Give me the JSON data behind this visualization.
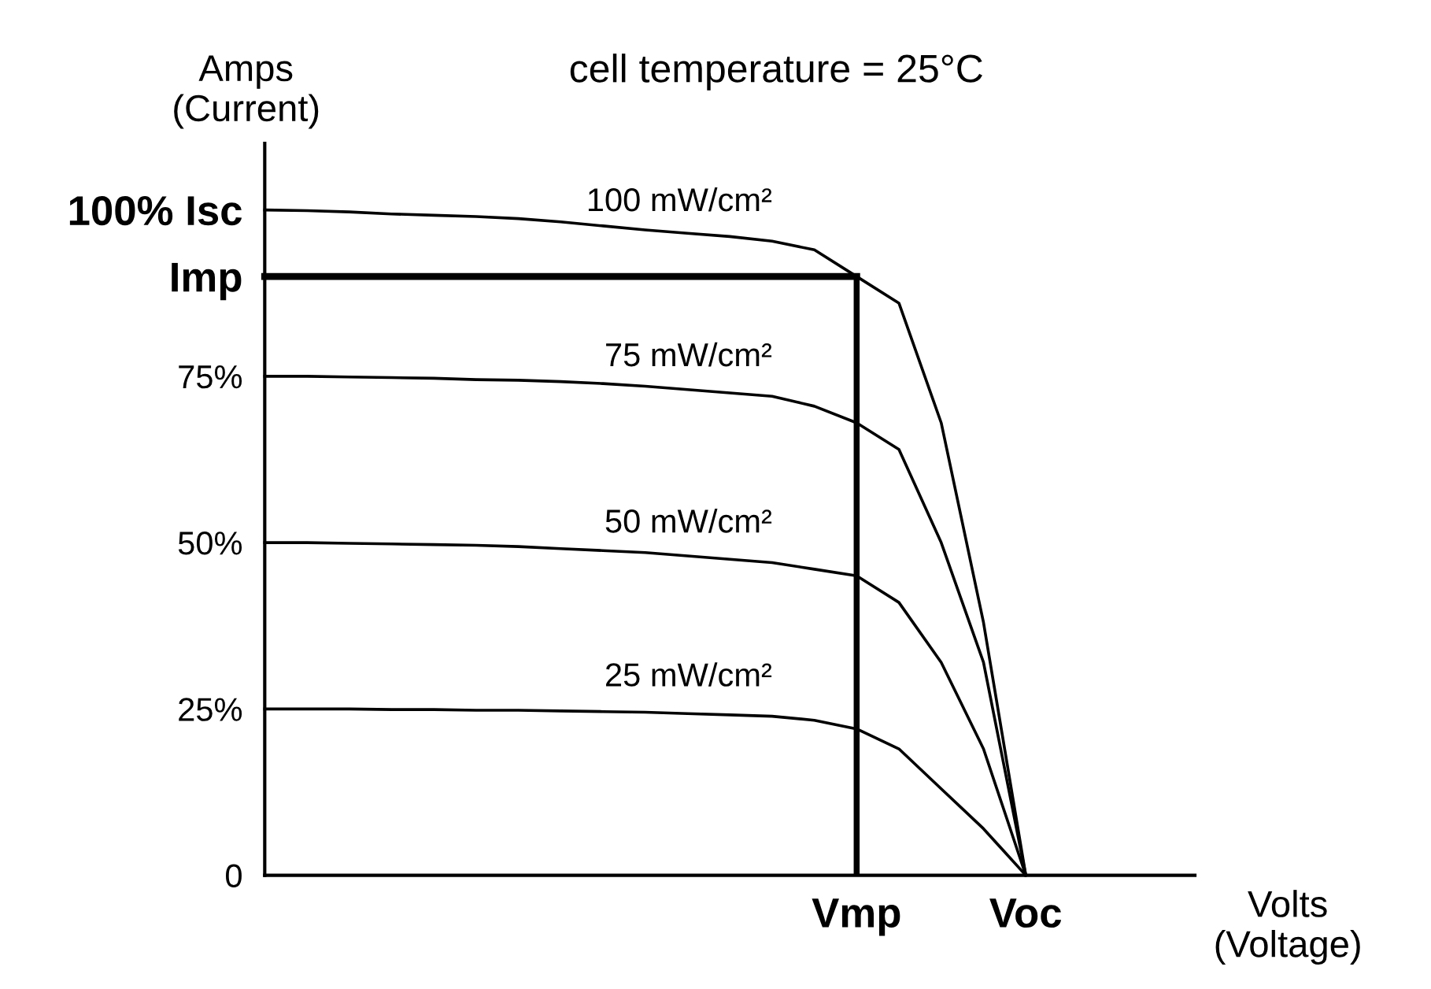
{
  "chart_data": {
    "type": "line",
    "title": "cell temperature = 25°C",
    "ylabel": "Amps\n(Current)",
    "xlabel": "Volts\n(Voltage)",
    "categories": [
      null,
      null,
      null,
      null,
      null,
      null,
      null,
      null,
      null,
      null,
      null,
      null,
      null,
      null,
      "Vmp",
      null,
      null,
      null,
      "Voc",
      null,
      null,
      null,
      null
    ],
    "ylim": [
      0,
      110
    ],
    "yticks": [
      0,
      {
        "value": 25,
        "label": "25%"
      },
      {
        "value": 50,
        "label": "50%"
      },
      {
        "value": 75,
        "label": "75%"
      },
      {
        "value": 90,
        "label": "Imp"
      },
      {
        "value": 100,
        "label": "100% Isc"
      }
    ],
    "grid": false,
    "legend": false,
    "marker": "none",
    "line_style": "solid",
    "series": [
      {
        "name": "100 mW/cm²",
        "color": "#000000",
        "values": [
          100,
          99.9,
          99.7,
          99.4,
          99.2,
          99,
          98.7,
          98.2,
          97.6,
          97,
          96.5,
          96,
          95.3,
          94,
          90,
          86,
          68,
          38,
          0,
          null,
          null,
          null,
          null
        ]
      },
      {
        "name": "75 mW/cm²",
        "color": "#000000",
        "values": [
          75,
          75,
          74.9,
          74.8,
          74.7,
          74.5,
          74.4,
          74.2,
          73.9,
          73.5,
          73,
          72.5,
          72,
          70.5,
          68,
          64,
          50,
          32,
          0,
          null,
          null,
          null,
          null
        ]
      },
      {
        "name": "50 mW/cm²",
        "color": "#000000",
        "values": [
          50,
          50,
          49.9,
          49.8,
          49.7,
          49.6,
          49.4,
          49.1,
          48.8,
          48.5,
          48,
          47.5,
          47,
          46,
          45,
          41,
          32,
          19,
          0,
          null,
          null,
          null,
          null
        ]
      },
      {
        "name": "25 mW/cm²",
        "color": "#000000",
        "values": [
          25,
          25,
          25,
          24.9,
          24.9,
          24.8,
          24.8,
          24.7,
          24.6,
          24.5,
          24.3,
          24.1,
          23.9,
          23.3,
          22,
          19,
          13,
          7,
          0,
          null,
          null,
          null,
          null
        ]
      },
      {
        "type": "line",
        "color": "#000000",
        "values": [
          90,
          90,
          90,
          90,
          90,
          90,
          90,
          90,
          90,
          90,
          90,
          90,
          90,
          90,
          90,
          null,
          null,
          null,
          null,
          null,
          null,
          null,
          null
        ]
      },
      {
        "type": "bar",
        "color": "#000000",
        "values": [
          null,
          null,
          null,
          null,
          null,
          null,
          null,
          null,
          null,
          null,
          null,
          null,
          null,
          null,
          90,
          null,
          null,
          null,
          null,
          null,
          null,
          null,
          null
        ]
      }
    ]
  }
}
